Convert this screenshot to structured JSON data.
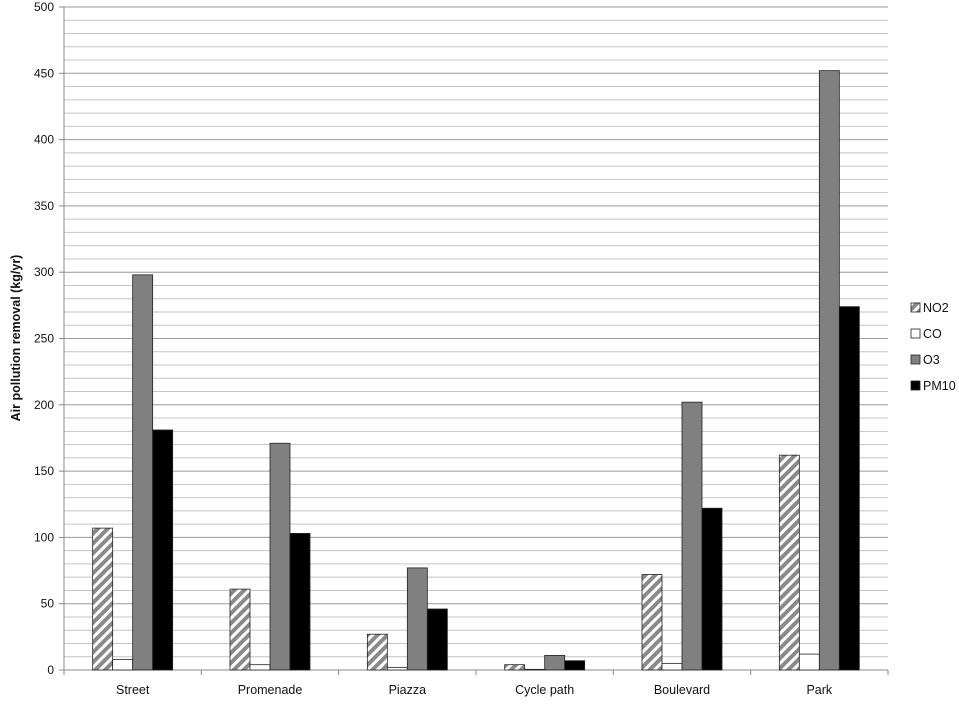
{
  "chart_data": {
    "type": "bar",
    "title": "",
    "xlabel": "",
    "ylabel": "Air  pollution removal  (kg/yr)",
    "ylim": [
      0,
      500
    ],
    "major_ticks": [
      0,
      50,
      100,
      150,
      200,
      250,
      300,
      350,
      400,
      450,
      500
    ],
    "minor_step": 10,
    "grid": true,
    "legend_position": "right",
    "categories": [
      "Street",
      "Promenade",
      "Piazza",
      "Cycle path",
      "Boulevard",
      "Park"
    ],
    "series": [
      {
        "name": "NO2",
        "values": [
          107,
          61,
          27,
          4,
          72,
          162
        ],
        "fill": "hatch",
        "color": "#909090"
      },
      {
        "name": "CO",
        "values": [
          8,
          4,
          2,
          0.5,
          5,
          12
        ],
        "fill": "solid",
        "color": "#ffffff"
      },
      {
        "name": "O3",
        "values": [
          298,
          171,
          77,
          11,
          202,
          452
        ],
        "fill": "solid",
        "color": "#808080"
      },
      {
        "name": "PM10",
        "values": [
          181,
          103,
          46,
          7,
          122,
          274
        ],
        "fill": "solid",
        "color": "#000000"
      }
    ]
  }
}
